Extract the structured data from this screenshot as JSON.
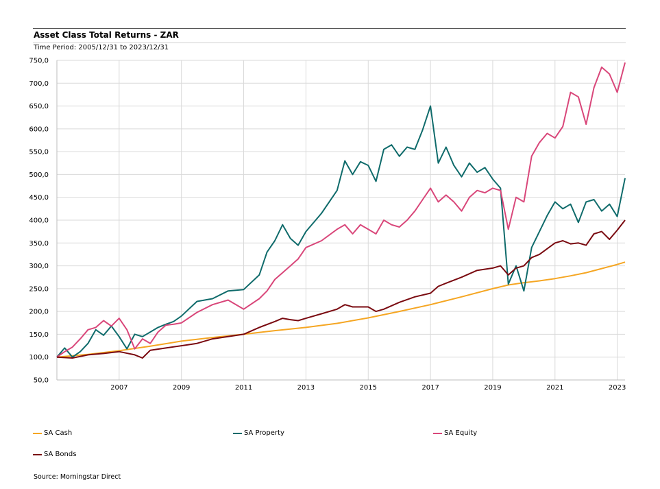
{
  "header": {
    "title": "Asset Class Total Returns - ZAR",
    "subtitle": "Time Period: 2005/12/31 to 2023/12/31"
  },
  "source": "Source: Morningstar Direct",
  "legend": [
    {
      "name": "SA Cash",
      "color": "#f5a623"
    },
    {
      "name": "SA Property",
      "color": "#0f6b6b"
    },
    {
      "name": "SA Equity",
      "color": "#d9477a"
    },
    {
      "name": "SA Bonds",
      "color": "#7a0a10"
    }
  ],
  "chart_data": {
    "type": "line",
    "title": "Asset Class Total Returns - ZAR",
    "subtitle": "Time Period: 2005/12/31 to 2023/12/31",
    "xlim": [
      2005.0,
      2023.25
    ],
    "ylim": [
      50,
      750
    ],
    "yticks": [
      50,
      100,
      150,
      200,
      250,
      300,
      350,
      400,
      450,
      500,
      550,
      600,
      650,
      700,
      750
    ],
    "ytick_labels": [
      "50,0",
      "100,0",
      "150,0",
      "200,0",
      "250,0",
      "300,0",
      "350,0",
      "400,0",
      "450,0",
      "500,0",
      "550,0",
      "600,0",
      "650,0",
      "700,0",
      "750,0"
    ],
    "xticks": [
      2007,
      2009,
      2011,
      2013,
      2015,
      2017,
      2019,
      2021,
      2023
    ],
    "grid": true,
    "legend_position": "bottom",
    "series": [
      {
        "name": "SA Cash",
        "color": "#f5a623",
        "x": [
          2005.0,
          2006.0,
          2007.0,
          2008.0,
          2009.0,
          2010.0,
          2011.0,
          2012.0,
          2013.0,
          2014.0,
          2015.0,
          2016.0,
          2017.0,
          2018.0,
          2019.0,
          2019.5,
          2020.0,
          2020.5,
          2021.0,
          2021.5,
          2022.0,
          2022.5,
          2023.0,
          2023.25
        ],
        "y": [
          100,
          106,
          114,
          124,
          135,
          143,
          150,
          158,
          165,
          174,
          186,
          200,
          215,
          232,
          250,
          258,
          263,
          267,
          272,
          278,
          285,
          294,
          303,
          308
        ]
      },
      {
        "name": "SA Property",
        "color": "#0f6b6b",
        "x": [
          2005.0,
          2005.25,
          2005.5,
          2005.75,
          2006.0,
          2006.25,
          2006.5,
          2006.75,
          2007.0,
          2007.25,
          2007.5,
          2007.75,
          2008.0,
          2008.25,
          2008.5,
          2008.75,
          2009.0,
          2009.5,
          2010.0,
          2010.5,
          2011.0,
          2011.5,
          2011.75,
          2012.0,
          2012.25,
          2012.5,
          2012.75,
          2013.0,
          2013.5,
          2014.0,
          2014.25,
          2014.5,
          2014.75,
          2015.0,
          2015.25,
          2015.5,
          2015.75,
          2016.0,
          2016.25,
          2016.5,
          2016.75,
          2017.0,
          2017.25,
          2017.5,
          2017.75,
          2018.0,
          2018.25,
          2018.5,
          2018.75,
          2019.0,
          2019.25,
          2019.5,
          2019.75,
          2020.0,
          2020.25,
          2020.5,
          2020.75,
          2021.0,
          2021.25,
          2021.5,
          2021.75,
          2022.0,
          2022.25,
          2022.5,
          2022.75,
          2023.0,
          2023.25
        ],
        "y": [
          100,
          120,
          100,
          112,
          130,
          160,
          148,
          168,
          145,
          118,
          150,
          145,
          155,
          165,
          172,
          178,
          190,
          222,
          228,
          245,
          248,
          280,
          330,
          355,
          390,
          360,
          345,
          375,
          415,
          465,
          530,
          500,
          528,
          520,
          485,
          555,
          565,
          540,
          560,
          555,
          598,
          650,
          525,
          560,
          520,
          495,
          525,
          505,
          515,
          490,
          470,
          260,
          300,
          245,
          340,
          375,
          410,
          440,
          425,
          435,
          395,
          440,
          445,
          420,
          435,
          408,
          492
        ]
      },
      {
        "name": "SA Equity",
        "color": "#d9477a",
        "x": [
          2005.0,
          2005.25,
          2005.5,
          2005.75,
          2006.0,
          2006.25,
          2006.5,
          2006.75,
          2007.0,
          2007.25,
          2007.5,
          2007.75,
          2008.0,
          2008.25,
          2008.5,
          2008.75,
          2009.0,
          2009.5,
          2010.0,
          2010.5,
          2011.0,
          2011.5,
          2011.75,
          2012.0,
          2012.25,
          2012.5,
          2012.75,
          2013.0,
          2013.5,
          2014.0,
          2014.25,
          2014.5,
          2014.75,
          2015.0,
          2015.25,
          2015.5,
          2015.75,
          2016.0,
          2016.25,
          2016.5,
          2016.75,
          2017.0,
          2017.25,
          2017.5,
          2017.75,
          2018.0,
          2018.25,
          2018.5,
          2018.75,
          2019.0,
          2019.25,
          2019.5,
          2019.75,
          2020.0,
          2020.25,
          2020.5,
          2020.75,
          2021.0,
          2021.25,
          2021.5,
          2021.75,
          2022.0,
          2022.25,
          2022.5,
          2022.75,
          2023.0,
          2023.25
        ],
        "y": [
          100,
          112,
          122,
          140,
          160,
          165,
          180,
          168,
          185,
          160,
          118,
          140,
          130,
          155,
          170,
          172,
          175,
          198,
          215,
          225,
          205,
          228,
          245,
          270,
          285,
          300,
          315,
          340,
          355,
          380,
          390,
          370,
          390,
          380,
          370,
          400,
          390,
          385,
          400,
          420,
          445,
          470,
          440,
          455,
          440,
          420,
          450,
          465,
          460,
          470,
          465,
          380,
          450,
          440,
          540,
          570,
          590,
          580,
          605,
          680,
          670,
          610,
          690,
          735,
          720,
          680,
          745
        ]
      },
      {
        "name": "SA Bonds",
        "color": "#7a0a10",
        "x": [
          2005.0,
          2005.5,
          2006.0,
          2006.5,
          2007.0,
          2007.5,
          2007.75,
          2008.0,
          2008.5,
          2009.0,
          2009.5,
          2010.0,
          2010.5,
          2011.0,
          2011.5,
          2012.0,
          2012.25,
          2012.5,
          2012.75,
          2013.0,
          2013.5,
          2014.0,
          2014.25,
          2014.5,
          2015.0,
          2015.25,
          2015.5,
          2016.0,
          2016.5,
          2017.0,
          2017.25,
          2017.5,
          2018.0,
          2018.5,
          2019.0,
          2019.25,
          2019.5,
          2019.75,
          2020.0,
          2020.25,
          2020.5,
          2021.0,
          2021.25,
          2021.5,
          2021.75,
          2022.0,
          2022.25,
          2022.5,
          2022.75,
          2023.0,
          2023.25
        ],
        "y": [
          100,
          98,
          105,
          108,
          112,
          105,
          98,
          115,
          120,
          125,
          130,
          140,
          145,
          150,
          165,
          178,
          185,
          182,
          180,
          185,
          195,
          205,
          215,
          210,
          210,
          200,
          205,
          220,
          232,
          240,
          255,
          262,
          275,
          290,
          295,
          300,
          280,
          295,
          300,
          318,
          325,
          350,
          355,
          348,
          350,
          345,
          370,
          375,
          358,
          378,
          400
        ]
      }
    ]
  }
}
